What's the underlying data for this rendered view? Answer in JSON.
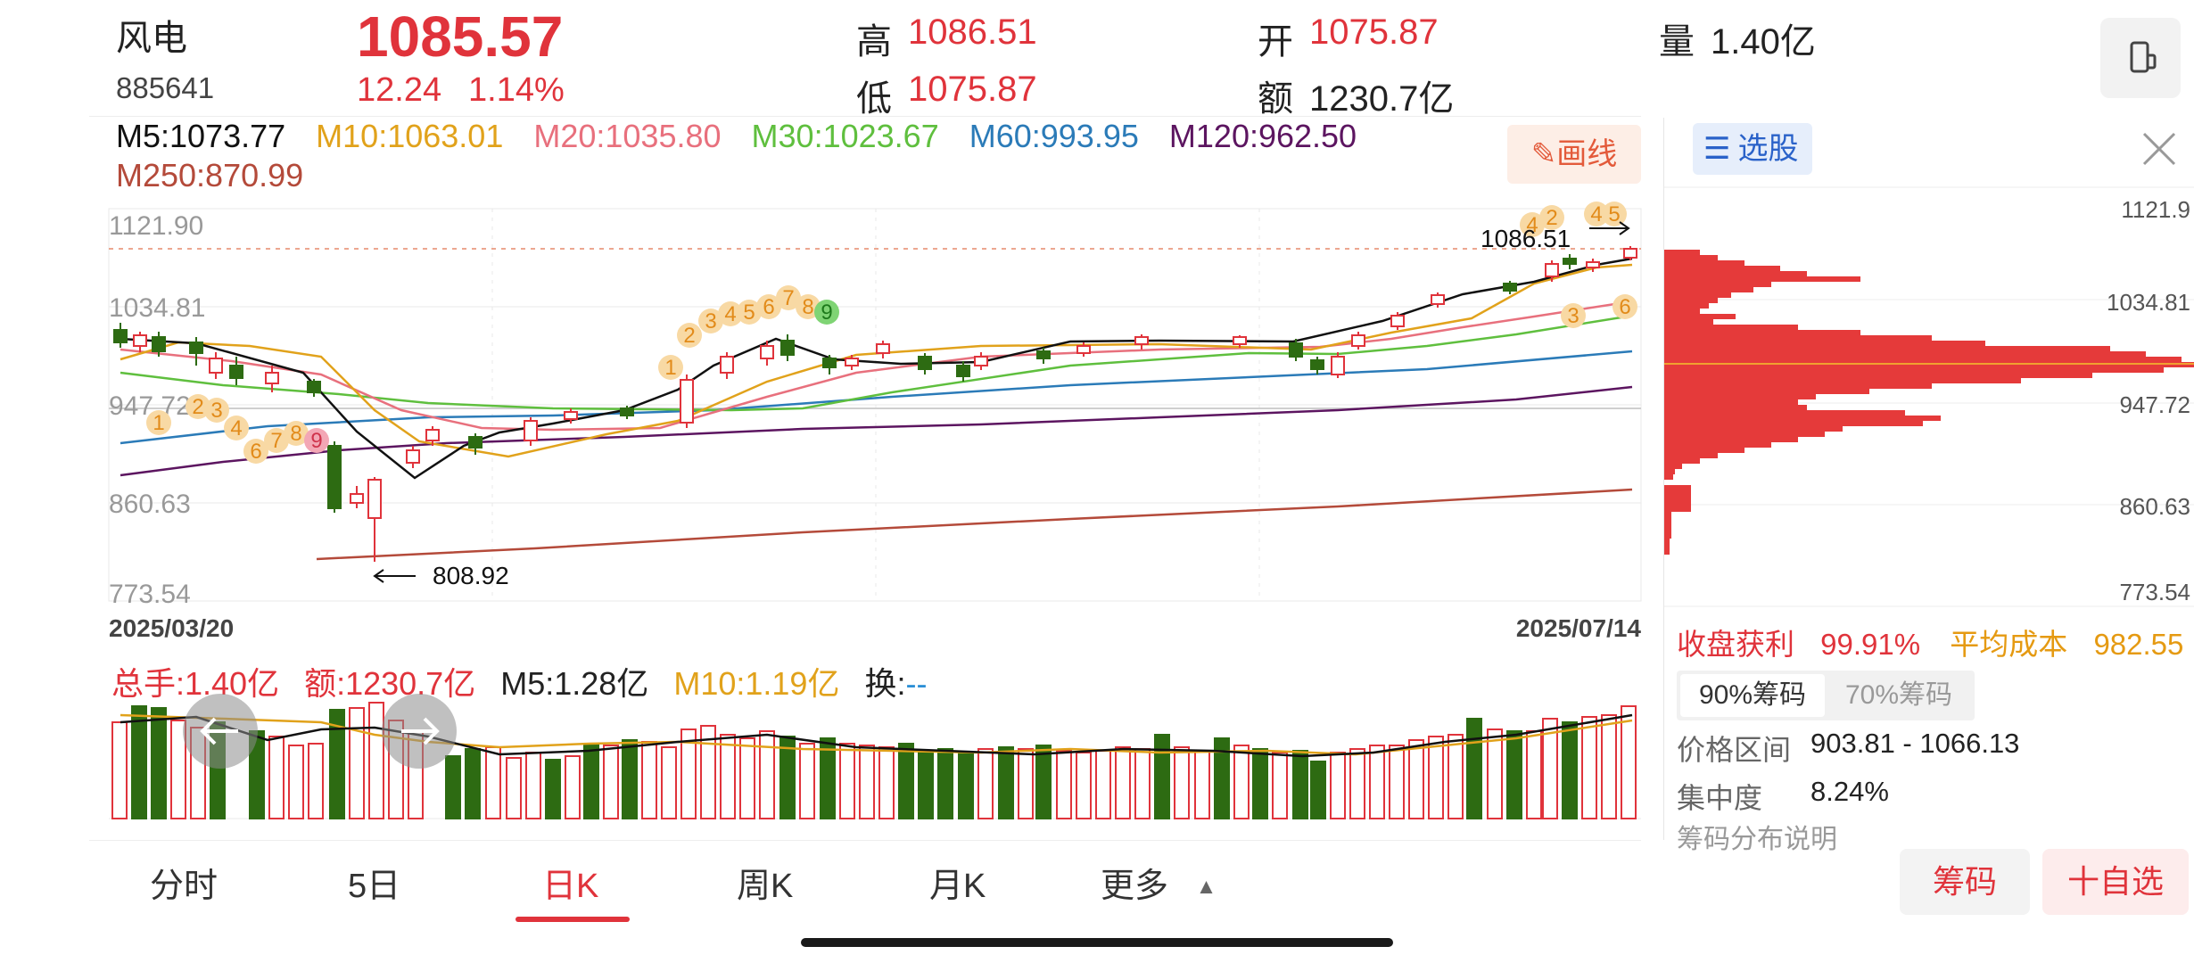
{
  "stock": {
    "name": "风电",
    "code": "885641",
    "price": "1085.57",
    "change": "12.24",
    "change_pct": "1.14%",
    "high_label": "高",
    "high": "1086.51",
    "low_label": "低",
    "low": "1075.87",
    "open_label": "开",
    "open": "1075.87",
    "amount_label": "额",
    "amount": "1230.7亿",
    "volume_label": "量",
    "volume": "1.40亿"
  },
  "ma": {
    "m5": "M5:1073.77",
    "m10": "M10:1063.01",
    "m20": "M20:1035.80",
    "m30": "M30:1023.67",
    "m60": "M60:993.95",
    "m120": "M120:962.50",
    "m250": "M250:870.99",
    "draw_button": "画线"
  },
  "colors": {
    "up": "#e0333b",
    "down": "#2d6b12",
    "m5": "#111111",
    "m10": "#e1a21b",
    "m20": "#e8707d",
    "m30": "#5fbf3e",
    "m60": "#2b7bb8",
    "m120": "#5c1560",
    "m250": "#b44a3a"
  },
  "kline": {
    "y_ticks": [
      "1121.90",
      "1034.81",
      "947.72",
      "860.63",
      "773.54"
    ],
    "date_start": "2025/03/20",
    "date_end": "2025/07/14",
    "low_annotation": "808.92",
    "high_annotation": "1086.51",
    "seq_labels": [
      "1",
      "2",
      "3",
      "4",
      "5",
      "6",
      "7",
      "8",
      "9",
      "1",
      "2",
      "3",
      "4",
      "5",
      "6",
      "7",
      "8",
      "9",
      "4",
      "2",
      "4",
      "5",
      "3",
      "6"
    ],
    "chart_data": {
      "type": "candlestick",
      "ylim": [
        773.54,
        1121.9
      ],
      "x": [
        "2025/03/20",
        "2025/07/14"
      ],
      "ma_last": {
        "M5": 1073.77,
        "M10": 1063.01,
        "M20": 1035.8,
        "M30": 1023.67,
        "M60": 993.95,
        "M120": 962.5,
        "M250": 870.99
      },
      "last": {
        "open": 1075.87,
        "high": 1086.51,
        "low": 1075.87,
        "close": 1085.57
      },
      "period_high": 1086.51,
      "period_low": 808.92
    }
  },
  "volume": {
    "total": "总手:1.40亿",
    "amount": "额:1230.7亿",
    "m5": "M5:1.28亿",
    "m10": "M10:1.19亿",
    "turnover_label": "换:",
    "turnover_value": "--"
  },
  "chip": {
    "select_button": "选股",
    "y_ticks": [
      "1121.9",
      "1034.81",
      "947.72",
      "860.63",
      "773.54"
    ],
    "profit_label": "收盘获利",
    "profit_value": "99.91%",
    "avg_cost_label": "平均成本",
    "avg_cost_value": "982.55",
    "tab_90": "90%筹码",
    "tab_70": "70%筹码",
    "range_label": "价格区间",
    "range_value": "903.81 - 1066.13",
    "concentration_label": "集中度",
    "concentration_value": "8.24%",
    "explain_label": "筹码分布说明"
  },
  "tabs": [
    "分时",
    "5日",
    "日K",
    "周K",
    "月K",
    "更多"
  ],
  "bottom_buttons": {
    "chips": "筹码",
    "add_watch": "十自选"
  }
}
